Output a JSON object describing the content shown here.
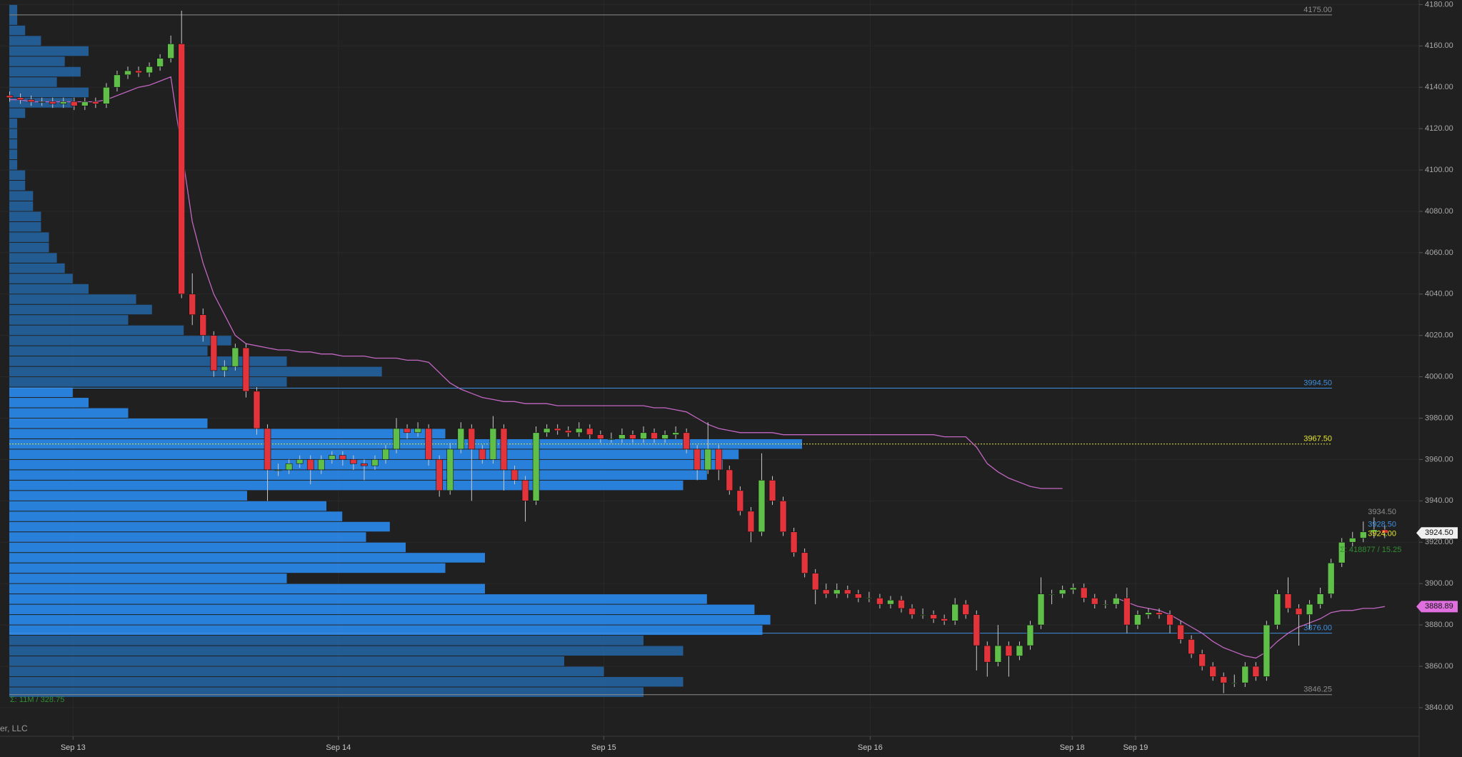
{
  "chart_data": {
    "type": "candlestick",
    "open": [
      4136,
      4135,
      4134,
      4133,
      4133,
      4132,
      4133,
      4131,
      4133,
      4132,
      4140,
      4146,
      4148,
      4147,
      4150,
      4154,
      4161,
      4040,
      4030,
      4020,
      4003,
      4005,
      4014,
      3993,
      3975,
      3955,
      3955,
      3958,
      3960,
      3955,
      3960,
      3962,
      3960,
      3958,
      3957,
      3960,
      3965,
      3975,
      3973,
      3975,
      3960,
      3945,
      3965,
      3975,
      3965,
      3960,
      3975,
      3955,
      3950,
      3940,
      3973,
      3975,
      3974,
      3973,
      3975,
      3972,
      3970,
      3970,
      3972,
      3970,
      3973,
      3970,
      3972,
      3973,
      3965,
      3955,
      3965,
      3955,
      3945,
      3935,
      3925,
      3950,
      3940,
      3925,
      3915,
      3905,
      3897,
      3895,
      3897,
      3895,
      3893,
      3893,
      3890,
      3892,
      3888,
      3885,
      3885,
      3883,
      3882,
      3890,
      3885,
      3870,
      3862,
      3870,
      3865,
      3870,
      3880,
      3895,
      3895,
      3897,
      3898,
      3893,
      3890,
      3890,
      3893,
      3880,
      3885,
      3886,
      3885,
      3880,
      3873,
      3866,
      3860,
      3855,
      3852,
      3852,
      3860,
      3855,
      3880,
      3895,
      3888,
      3885,
      3890,
      3895,
      3910,
      3920,
      3922,
      3925,
      3926
    ],
    "high": [
      4138,
      4137,
      4136,
      4135,
      4135,
      4135,
      4135,
      4135,
      4135,
      4142,
      4148,
      4150,
      4150,
      4152,
      4156,
      4165,
      4177,
      4050,
      4033,
      4022,
      4008,
      4016,
      4016,
      3995,
      3977,
      3958,
      3960,
      3962,
      3962,
      3962,
      3964,
      3964,
      3962,
      3960,
      3962,
      3967,
      3980,
      3977,
      3978,
      3977,
      3962,
      3968,
      3978,
      3977,
      3967,
      3981,
      3977,
      3957,
      3952,
      3976,
      3977,
      3977,
      3976,
      3978,
      3977,
      3974,
      3973,
      3975,
      3974,
      3976,
      3975,
      3974,
      3976,
      3975,
      3967,
      3978,
      3967,
      3957,
      3947,
      3937,
      3963,
      3952,
      3942,
      3927,
      3917,
      3907,
      3900,
      3900,
      3899,
      3897,
      3896,
      3895,
      3894,
      3894,
      3890,
      3888,
      3887,
      3885,
      3893,
      3892,
      3887,
      3872,
      3880,
      3872,
      3872,
      3882,
      3903,
      3897,
      3899,
      3900,
      3900,
      3895,
      3892,
      3895,
      3898,
      3887,
      3888,
      3888,
      3887,
      3882,
      3875,
      3868,
      3862,
      3857,
      3856,
      3862,
      3862,
      3882,
      3897,
      3903,
      3890,
      3892,
      3898,
      3912,
      3922,
      3925,
      3930,
      3932,
      3928
    ],
    "low": [
      4133,
      4132,
      4131,
      4131,
      4130,
      4130,
      4129,
      4129,
      4130,
      4130,
      4138,
      4144,
      4145,
      4145,
      4148,
      4152,
      4038,
      4025,
      4017,
      4000,
      4000,
      4003,
      3990,
      3972,
      3940,
      3952,
      3953,
      3956,
      3948,
      3953,
      3958,
      3957,
      3955,
      3950,
      3955,
      3958,
      3963,
      3970,
      3971,
      3957,
      3942,
      3943,
      3963,
      3940,
      3958,
      3958,
      3945,
      3948,
      3930,
      3938,
      3971,
      3972,
      3971,
      3971,
      3970,
      3968,
      3968,
      3968,
      3968,
      3968,
      3968,
      3968,
      3970,
      3963,
      3950,
      3953,
      3950,
      3943,
      3933,
      3920,
      3923,
      3938,
      3923,
      3913,
      3903,
      3890,
      3893,
      3893,
      3893,
      3891,
      3891,
      3888,
      3888,
      3886,
      3883,
      3883,
      3881,
      3880,
      3880,
      3883,
      3858,
      3855,
      3860,
      3855,
      3863,
      3868,
      3878,
      3890,
      3893,
      3895,
      3891,
      3888,
      3888,
      3888,
      3876,
      3878,
      3883,
      3883,
      3876,
      3871,
      3864,
      3858,
      3853,
      3847,
      3850,
      3850,
      3853,
      3853,
      3878,
      3886,
      3870,
      3878,
      3888,
      3893,
      3908,
      3918,
      3920,
      3922,
      3922
    ],
    "close": [
      4135,
      4134,
      4133,
      4133,
      4132,
      4133,
      4131,
      4133,
      4132,
      4140,
      4146,
      4148,
      4147,
      4150,
      4154,
      4161,
      4040,
      4030,
      4020,
      4003,
      4005,
      4014,
      3993,
      3975,
      3955,
      3955,
      3958,
      3960,
      3955,
      3960,
      3962,
      3960,
      3958,
      3957,
      3960,
      3965,
      3975,
      3973,
      3975,
      3960,
      3945,
      3965,
      3975,
      3965,
      3960,
      3975,
      3955,
      3950,
      3940,
      3973,
      3975,
      3974,
      3973,
      3975,
      3972,
      3970,
      3970,
      3972,
      3970,
      3973,
      3970,
      3972,
      3973,
      3965,
      3955,
      3965,
      3955,
      3945,
      3935,
      3925,
      3950,
      3940,
      3925,
      3915,
      3905,
      3897,
      3895,
      3897,
      3895,
      3893,
      3893,
      3890,
      3892,
      3888,
      3885,
      3885,
      3883,
      3882,
      3890,
      3885,
      3870,
      3862,
      3870,
      3865,
      3870,
      3880,
      3895,
      3895,
      3897,
      3898,
      3893,
      3890,
      3890,
      3893,
      3880,
      3885,
      3886,
      3885,
      3880,
      3873,
      3866,
      3860,
      3855,
      3852,
      3852,
      3860,
      3855,
      3880,
      3895,
      3888,
      3885,
      3890,
      3895,
      3910,
      3920,
      3922,
      3925,
      3926,
      3924.5
    ],
    "up_color": "#5fbf48",
    "down_color": "#e3343b",
    "wick_color": "#c8c8c8",
    "vwap": {
      "color": "#c266c2",
      "values": [
        4134,
        4134,
        4133,
        4133,
        4133,
        4133,
        4133,
        4133,
        4133,
        4134,
        4136,
        4138,
        4140,
        4141,
        4143,
        4145,
        4110,
        4075,
        4055,
        4040,
        4030,
        4020,
        4016,
        4015,
        4014,
        4013,
        4013,
        4012,
        4012,
        4011,
        4011,
        4010,
        4010,
        4010,
        4009,
        4009,
        4009,
        4008,
        4008,
        4007,
        4002,
        3997,
        3994,
        3992,
        3990,
        3989,
        3988,
        3988,
        3987,
        3987,
        3987,
        3986,
        3986,
        3986,
        3986,
        3986,
        3986,
        3986,
        3986,
        3986,
        3985,
        3985,
        3984,
        3983,
        3980,
        3977,
        3975,
        3974,
        3973,
        3973,
        3973,
        3973,
        3972,
        3972,
        3972,
        3972,
        3972,
        3972,
        3972,
        3972,
        3972,
        3972,
        3972,
        3972,
        3972,
        3972,
        3972,
        3971,
        3971,
        3971,
        3966,
        3958,
        3954,
        3951,
        3949,
        3947,
        3946,
        3946,
        3946,
        null,
        null,
        null,
        null,
        3893,
        3891,
        3889,
        3888,
        3887,
        3885,
        3882,
        3879,
        3876,
        3872,
        3869,
        3867,
        3865,
        3864,
        3867,
        3872,
        3876,
        3879,
        3881,
        3883,
        3886,
        3887,
        3887,
        3888,
        3888,
        3888.89
      ]
    },
    "profile": {
      "color": "#2a86e6",
      "outer_color": "#2466a8",
      "bins": [
        3845,
        3850,
        3855,
        3860,
        3865,
        3870,
        3875,
        3880,
        3885,
        3890,
        3895,
        3900,
        3905,
        3910,
        3915,
        3920,
        3925,
        3930,
        3935,
        3940,
        3945,
        3950,
        3955,
        3960,
        3965,
        3970,
        3975,
        3980,
        3985,
        3990,
        3995,
        4000,
        4005,
        4010,
        4015,
        4020,
        4025,
        4030,
        4035,
        4040,
        4045,
        4050,
        4055,
        4060,
        4065,
        4070,
        4075,
        4080,
        4085,
        4090,
        4095,
        4100,
        4105,
        4110,
        4115,
        4120,
        4125,
        4130,
        4135,
        4140,
        4145,
        4150,
        4155,
        4160,
        4165,
        4170,
        4175,
        4180
      ],
      "counts": [
        80,
        85,
        75,
        70,
        85,
        80,
        95,
        96,
        94,
        88,
        60,
        35,
        55,
        60,
        50,
        45,
        48,
        42,
        40,
        30,
        85,
        88,
        90,
        92,
        100,
        55,
        25,
        15,
        10,
        8,
        35,
        47,
        35,
        25,
        28,
        22,
        15,
        18,
        16,
        10,
        8,
        7,
        6,
        5,
        5,
        4,
        4,
        3,
        3,
        2,
        2,
        1,
        1,
        1,
        1,
        1,
        2,
        8,
        10,
        6,
        9,
        7,
        10,
        4,
        2,
        1,
        1
      ]
    },
    "xlim": [
      -0.9,
      131.2
    ],
    "xticks": [
      {
        "value": 5.9,
        "label": "Sep 13"
      },
      {
        "value": 30.6,
        "label": "Sep 14"
      },
      {
        "value": 55.3,
        "label": "Sep 15"
      },
      {
        "value": 80.1,
        "label": "Sep 16"
      },
      {
        "value": 98.9,
        "label": "Sep 18"
      },
      {
        "value": 104.8,
        "label": "Sep 19"
      }
    ],
    "ylim": [
      3826.5,
      4182.2
    ],
    "yticks": [
      {
        "value": 3840,
        "label": "3840.00"
      },
      {
        "value": 3860,
        "label": "3860.00"
      },
      {
        "value": 3880,
        "label": "3880.00"
      },
      {
        "value": 3900,
        "label": "3900.00"
      },
      {
        "value": 3920,
        "label": "3920.00"
      },
      {
        "value": 3940,
        "label": "3940.00"
      },
      {
        "value": 3960,
        "label": "3960.00"
      },
      {
        "value": 3980,
        "label": "3980.00"
      },
      {
        "value": 4000,
        "label": "4000.00"
      },
      {
        "value": 4020,
        "label": "4020.00"
      },
      {
        "value": 4040,
        "label": "4040.00"
      },
      {
        "value": 4060,
        "label": "4060.00"
      },
      {
        "value": 4080,
        "label": "4080.00"
      },
      {
        "value": 4100,
        "label": "4100.00"
      },
      {
        "value": 4120,
        "label": "4120.00"
      },
      {
        "value": 4140,
        "label": "4140.00"
      },
      {
        "value": 4160,
        "label": "4160.00"
      },
      {
        "value": 4180,
        "label": "4180.00"
      }
    ],
    "grid": true,
    "levels": [
      {
        "value": 4175,
        "label": "4175.00",
        "color": "#8c8c8c",
        "dashed": false
      },
      {
        "value": 3994.5,
        "label": "3994.50",
        "color": "#3d8fe0",
        "dashed": false
      },
      {
        "value": 3967.5,
        "label": "3967.50",
        "color": "#e6e62a",
        "dashed": true
      },
      {
        "value": 3876,
        "label": "3876.00",
        "color": "#3d8fe0",
        "dashed": false
      },
      {
        "value": 3846.25,
        "label": "3846.25",
        "color": "#8c8c8c",
        "dashed": false
      }
    ],
    "price_notes": [
      {
        "value": 3934.5,
        "label": "3934.50",
        "color": "#8c8c8c"
      },
      {
        "value": 3928.5,
        "label": "3928.50",
        "color": "#3d8fe0"
      },
      {
        "value": 3924,
        "label": "3924.00",
        "color": "#e6e62a"
      }
    ],
    "price_tags": [
      {
        "value": 3924.5,
        "label": "3924.50",
        "color": "#f0f0f0",
        "text_color": "#111111"
      },
      {
        "value": 3888.89,
        "label": "3888.89",
        "color": "#e070e0",
        "text_color": "#111111"
      }
    ],
    "session_stats": [
      "Σ: 11M / 328.75",
      "Σ: 418877 / 15.25"
    ],
    "copyright": "er, LLC"
  }
}
